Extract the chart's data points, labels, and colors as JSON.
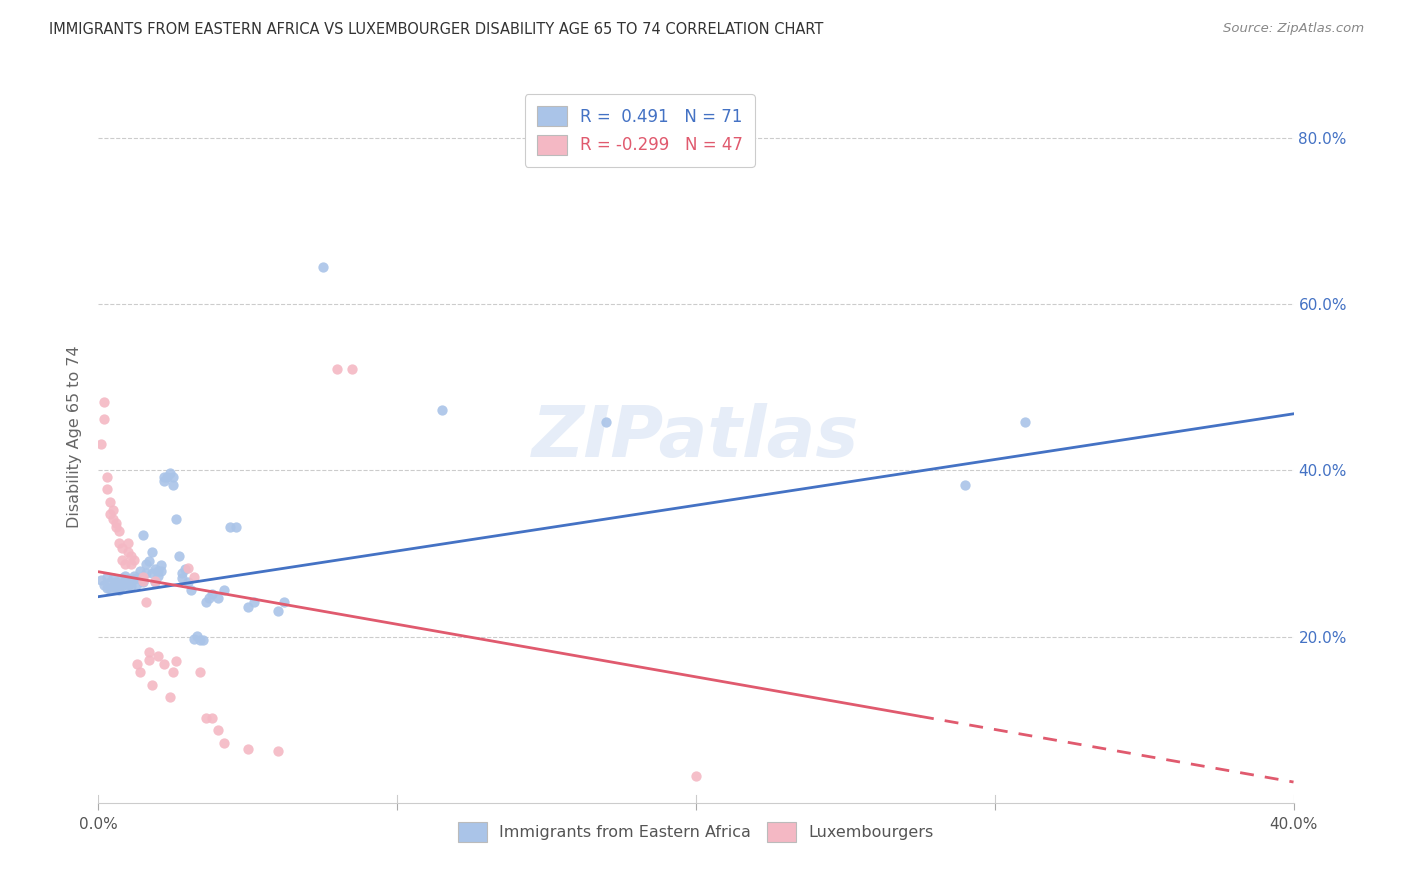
{
  "title": "IMMIGRANTS FROM EASTERN AFRICA VS LUXEMBOURGER DISABILITY AGE 65 TO 74 CORRELATION CHART",
  "source": "Source: ZipAtlas.com",
  "ylabel": "Disability Age 65 to 74",
  "xlim": [
    0.0,
    0.4
  ],
  "ylim": [
    0.0,
    0.88
  ],
  "xtick_vals": [
    0.0,
    0.1,
    0.2,
    0.3,
    0.4
  ],
  "xtick_labels": [
    "0.0%",
    "",
    "",
    "",
    "40.0%"
  ],
  "ytick_vals": [
    0.2,
    0.4,
    0.6,
    0.8
  ],
  "ytick_labels": [
    "20.0%",
    "40.0%",
    "60.0%",
    "80.0%"
  ],
  "blue_color": "#aac4e8",
  "blue_color_dark": "#4472c4",
  "pink_color": "#f4b8c4",
  "pink_color_dark": "#e05a6e",
  "blue_R": 0.491,
  "blue_N": 71,
  "pink_R": -0.299,
  "pink_N": 47,
  "legend_label_blue": "Immigrants from Eastern Africa",
  "legend_label_pink": "Luxembourgers",
  "watermark": "ZIPatlas",
  "blue_scatter": [
    [
      0.001,
      0.268
    ],
    [
      0.002,
      0.262
    ],
    [
      0.003,
      0.258
    ],
    [
      0.003,
      0.272
    ],
    [
      0.004,
      0.266
    ],
    [
      0.004,
      0.257
    ],
    [
      0.005,
      0.261
    ],
    [
      0.005,
      0.271
    ],
    [
      0.006,
      0.259
    ],
    [
      0.006,
      0.266
    ],
    [
      0.007,
      0.263
    ],
    [
      0.007,
      0.256
    ],
    [
      0.008,
      0.271
    ],
    [
      0.008,
      0.261
    ],
    [
      0.009,
      0.266
    ],
    [
      0.009,
      0.273
    ],
    [
      0.01,
      0.261
    ],
    [
      0.01,
      0.269
    ],
    [
      0.011,
      0.266
    ],
    [
      0.011,
      0.261
    ],
    [
      0.012,
      0.269
    ],
    [
      0.012,
      0.273
    ],
    [
      0.013,
      0.263
    ],
    [
      0.013,
      0.271
    ],
    [
      0.014,
      0.279
    ],
    [
      0.015,
      0.266
    ],
    [
      0.015,
      0.322
    ],
    [
      0.016,
      0.276
    ],
    [
      0.016,
      0.287
    ],
    [
      0.017,
      0.291
    ],
    [
      0.018,
      0.302
    ],
    [
      0.018,
      0.276
    ],
    [
      0.019,
      0.281
    ],
    [
      0.019,
      0.266
    ],
    [
      0.02,
      0.279
    ],
    [
      0.02,
      0.273
    ],
    [
      0.021,
      0.286
    ],
    [
      0.021,
      0.279
    ],
    [
      0.022,
      0.392
    ],
    [
      0.022,
      0.387
    ],
    [
      0.023,
      0.392
    ],
    [
      0.024,
      0.397
    ],
    [
      0.025,
      0.382
    ],
    [
      0.025,
      0.392
    ],
    [
      0.026,
      0.342
    ],
    [
      0.027,
      0.297
    ],
    [
      0.028,
      0.276
    ],
    [
      0.028,
      0.271
    ],
    [
      0.029,
      0.281
    ],
    [
      0.03,
      0.266
    ],
    [
      0.031,
      0.256
    ],
    [
      0.032,
      0.197
    ],
    [
      0.033,
      0.201
    ],
    [
      0.034,
      0.196
    ],
    [
      0.035,
      0.196
    ],
    [
      0.036,
      0.241
    ],
    [
      0.037,
      0.246
    ],
    [
      0.038,
      0.251
    ],
    [
      0.04,
      0.246
    ],
    [
      0.042,
      0.256
    ],
    [
      0.044,
      0.332
    ],
    [
      0.046,
      0.332
    ],
    [
      0.05,
      0.236
    ],
    [
      0.052,
      0.241
    ],
    [
      0.06,
      0.231
    ],
    [
      0.062,
      0.241
    ],
    [
      0.075,
      0.645
    ],
    [
      0.115,
      0.472
    ],
    [
      0.17,
      0.458
    ],
    [
      0.29,
      0.382
    ],
    [
      0.31,
      0.458
    ]
  ],
  "pink_scatter": [
    [
      0.001,
      0.432
    ],
    [
      0.002,
      0.482
    ],
    [
      0.002,
      0.462
    ],
    [
      0.003,
      0.392
    ],
    [
      0.003,
      0.377
    ],
    [
      0.004,
      0.362
    ],
    [
      0.004,
      0.347
    ],
    [
      0.005,
      0.352
    ],
    [
      0.005,
      0.342
    ],
    [
      0.006,
      0.337
    ],
    [
      0.006,
      0.332
    ],
    [
      0.007,
      0.327
    ],
    [
      0.007,
      0.312
    ],
    [
      0.008,
      0.307
    ],
    [
      0.008,
      0.292
    ],
    [
      0.009,
      0.287
    ],
    [
      0.01,
      0.312
    ],
    [
      0.01,
      0.302
    ],
    [
      0.011,
      0.297
    ],
    [
      0.011,
      0.287
    ],
    [
      0.012,
      0.292
    ],
    [
      0.013,
      0.167
    ],
    [
      0.014,
      0.157
    ],
    [
      0.015,
      0.272
    ],
    [
      0.015,
      0.267
    ],
    [
      0.016,
      0.242
    ],
    [
      0.017,
      0.182
    ],
    [
      0.017,
      0.172
    ],
    [
      0.018,
      0.142
    ],
    [
      0.019,
      0.267
    ],
    [
      0.02,
      0.177
    ],
    [
      0.022,
      0.167
    ],
    [
      0.024,
      0.127
    ],
    [
      0.025,
      0.157
    ],
    [
      0.026,
      0.17
    ],
    [
      0.03,
      0.282
    ],
    [
      0.032,
      0.272
    ],
    [
      0.034,
      0.157
    ],
    [
      0.036,
      0.102
    ],
    [
      0.038,
      0.102
    ],
    [
      0.04,
      0.087
    ],
    [
      0.042,
      0.072
    ],
    [
      0.05,
      0.065
    ],
    [
      0.06,
      0.062
    ],
    [
      0.08,
      0.522
    ],
    [
      0.085,
      0.522
    ],
    [
      0.2,
      0.032
    ]
  ],
  "blue_line_x": [
    0.0,
    0.4
  ],
  "blue_line_y": [
    0.248,
    0.468
  ],
  "pink_line_x": [
    0.0,
    0.4
  ],
  "pink_line_y": [
    0.278,
    0.025
  ],
  "pink_line_solid_end": 0.275,
  "pink_line_dashed_start": 0.275
}
